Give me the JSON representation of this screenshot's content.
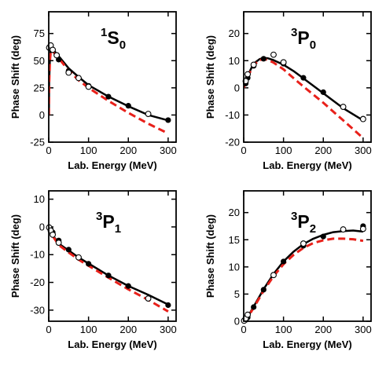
{
  "chart_data": [
    {
      "type": "line",
      "title_sup": "1",
      "title_main": "S",
      "title_sub": "0",
      "xlabel": "Lab. Energy (MeV)",
      "ylabel": "Phase Shift (deg)",
      "xlim": [
        0,
        320
      ],
      "ylim": [
        -25,
        95
      ],
      "xticks": [
        0,
        100,
        200,
        300
      ],
      "yticks": [
        -25,
        0,
        25,
        50,
        75
      ],
      "series": [
        {
          "style": "solid",
          "color": "#000000",
          "x": [
            0.3,
            1,
            3,
            5,
            10,
            20,
            30,
            50,
            75,
            100,
            150,
            200,
            250,
            300
          ],
          "y": [
            0,
            30,
            52,
            60,
            61,
            56,
            52,
            43,
            35,
            27.5,
            17,
            8,
            0,
            -5
          ]
        },
        {
          "style": "dashed",
          "color": "#e8201a",
          "x": [
            0.3,
            1,
            3,
            5,
            10,
            20,
            30,
            50,
            75,
            100,
            150,
            200,
            250,
            300
          ],
          "y": [
            0,
            28,
            50,
            58,
            59,
            54,
            50,
            41,
            32,
            25,
            13,
            2,
            -8,
            -17
          ]
        },
        {
          "marker": "filled-circle",
          "color": "#000000",
          "x": [
            5,
            10,
            25,
            50,
            100,
            150,
            200,
            300
          ],
          "y": [
            63.5,
            59.9,
            51,
            40.5,
            26.8,
            16.9,
            8.5,
            -4.7
          ]
        },
        {
          "marker": "open-circle",
          "color": "#000000",
          "x": [
            1,
            5,
            10,
            20,
            50,
            75,
            100,
            250
          ],
          "y": [
            62,
            64,
            60,
            55,
            39,
            34,
            26,
            1
          ]
        }
      ]
    },
    {
      "type": "line",
      "title_sup": "3",
      "title_main": "P",
      "title_sub": "0",
      "xlabel": "Lab. Energy (MeV)",
      "ylabel": "Phase Shift (deg)",
      "xlim": [
        0,
        320
      ],
      "ylim": [
        -20,
        28
      ],
      "xticks": [
        0,
        100,
        200,
        300
      ],
      "yticks": [
        -20,
        -10,
        0,
        10,
        20
      ],
      "series": [
        {
          "style": "solid",
          "color": "#000000",
          "x": [
            0,
            5,
            10,
            20,
            30,
            40,
            50,
            60,
            75,
            100,
            125,
            150,
            200,
            250,
            300
          ],
          "y": [
            0,
            2.5,
            4.5,
            7.5,
            9.5,
            10.6,
            11,
            10.9,
            10.2,
            8.5,
            6.2,
            3.5,
            -2,
            -7.5,
            -12
          ]
        },
        {
          "style": "dashed",
          "color": "#e8201a",
          "x": [
            0,
            5,
            10,
            20,
            30,
            40,
            50,
            60,
            75,
            100,
            125,
            150,
            200,
            250,
            300
          ],
          "y": [
            0,
            2,
            4,
            7,
            9,
            10.2,
            10.6,
            10.3,
            9.3,
            6.8,
            3.6,
            0.5,
            -5.5,
            -12,
            -18.5
          ]
        },
        {
          "marker": "filled-circle",
          "color": "#000000",
          "x": [
            5,
            10,
            25,
            50,
            100,
            150,
            200,
            300
          ],
          "y": [
            1.6,
            3.7,
            8.1,
            10.7,
            8.9,
            3.7,
            -1.6,
            -11.4
          ]
        },
        {
          "marker": "open-circle",
          "color": "#000000",
          "x": [
            5,
            10,
            25,
            75,
            100,
            250,
            300
          ],
          "y": [
            2.5,
            5,
            8.5,
            12.2,
            9.4,
            -7,
            -11.5
          ]
        }
      ]
    },
    {
      "type": "line",
      "title_sup": "3",
      "title_main": "P",
      "title_sub": "1",
      "xlabel": "Lab. Energy (MeV)",
      "ylabel": "Phase Shift (deg)",
      "xlim": [
        0,
        320
      ],
      "ylim": [
        -34,
        13
      ],
      "xticks": [
        0,
        100,
        200,
        300
      ],
      "yticks": [
        -30,
        -20,
        -10,
        0,
        10
      ],
      "series": [
        {
          "style": "solid",
          "color": "#000000",
          "x": [
            0,
            5,
            10,
            25,
            50,
            75,
            100,
            150,
            200,
            250,
            300
          ],
          "y": [
            0,
            -1.5,
            -3,
            -6,
            -8.5,
            -11,
            -13.2,
            -17.5,
            -21.3,
            -24.5,
            -28
          ]
        },
        {
          "style": "dashed",
          "color": "#e8201a",
          "x": [
            0,
            5,
            10,
            25,
            50,
            75,
            100,
            150,
            200,
            250,
            300
          ],
          "y": [
            0,
            -1.7,
            -3.3,
            -6.5,
            -9.2,
            -11.8,
            -14,
            -18.3,
            -22.5,
            -26.3,
            -30.5
          ]
        },
        {
          "marker": "filled-circle",
          "color": "#000000",
          "x": [
            5,
            10,
            25,
            50,
            100,
            150,
            200,
            300
          ],
          "y": [
            -0.9,
            -2,
            -4.9,
            -8.2,
            -13.3,
            -17.5,
            -21.3,
            -28.2
          ]
        },
        {
          "marker": "open-circle",
          "color": "#000000",
          "x": [
            1,
            5,
            10,
            25,
            75,
            250
          ],
          "y": [
            -0.2,
            -1.3,
            -2.8,
            -5.7,
            -11,
            -25.8
          ]
        }
      ]
    },
    {
      "type": "line",
      "title_sup": "3",
      "title_main": "P",
      "title_sub": "2",
      "xlabel": "Lab. Energy (MeV)",
      "ylabel": "Phase Shift (deg)",
      "xlim": [
        0,
        320
      ],
      "ylim": [
        0,
        24
      ],
      "xticks": [
        0,
        100,
        200,
        300
      ],
      "yticks": [
        0,
        5,
        10,
        15,
        20
      ],
      "series": [
        {
          "style": "solid",
          "color": "#000000",
          "x": [
            0,
            10,
            25,
            50,
            75,
            100,
            125,
            150,
            175,
            200,
            225,
            250,
            275,
            300
          ],
          "y": [
            0,
            0.8,
            2.7,
            5.9,
            8.7,
            11,
            12.8,
            14.2,
            15.2,
            15.9,
            16.4,
            16.6,
            16.7,
            16.5
          ]
        },
        {
          "style": "dashed",
          "color": "#e8201a",
          "x": [
            0,
            10,
            25,
            50,
            75,
            100,
            125,
            150,
            175,
            200,
            225,
            250,
            275,
            300
          ],
          "y": [
            0,
            0.7,
            2.5,
            5.6,
            8.3,
            10.5,
            12.2,
            13.5,
            14.4,
            14.9,
            15.2,
            15.2,
            15.1,
            14.8
          ]
        },
        {
          "marker": "filled-circle",
          "color": "#000000",
          "x": [
            5,
            10,
            25,
            50,
            100,
            150,
            200,
            300
          ],
          "y": [
            0.25,
            0.7,
            2.6,
            5.8,
            11,
            13.9,
            15.6,
            17.5
          ]
        },
        {
          "marker": "open-circle",
          "color": "#000000",
          "x": [
            1,
            5,
            10,
            75,
            150,
            250,
            300
          ],
          "y": [
            0.1,
            0.5,
            1.2,
            8.5,
            14.3,
            16.9,
            17
          ]
        }
      ]
    }
  ]
}
